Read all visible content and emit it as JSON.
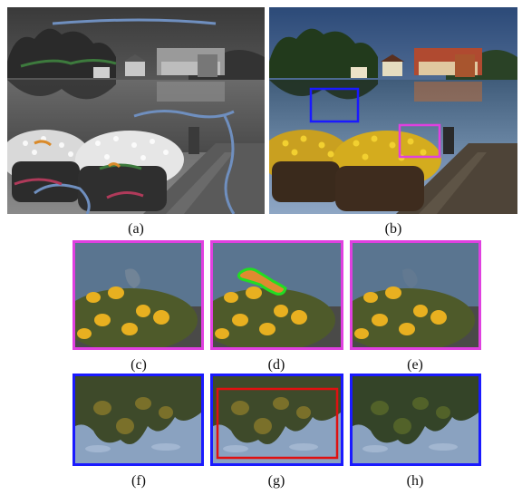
{
  "captions": {
    "a": "(a)",
    "b": "(b)",
    "c": "(c)",
    "d": "(d)",
    "e": "(e)",
    "f": "(f)",
    "g": "(g)",
    "h": "(h)"
  },
  "colors": {
    "magenta_frame": "#e040e0",
    "blue_frame": "#1a1aff",
    "red_box": "#e01010",
    "green_stroke": "#22dd22",
    "orange_fill": "#e08a30",
    "scribble_blue": "#6f8fbf",
    "scribble_green": "#3d7a3d",
    "scribble_red": "#b03a5a",
    "scribble_orange": "#d98a2a"
  }
}
